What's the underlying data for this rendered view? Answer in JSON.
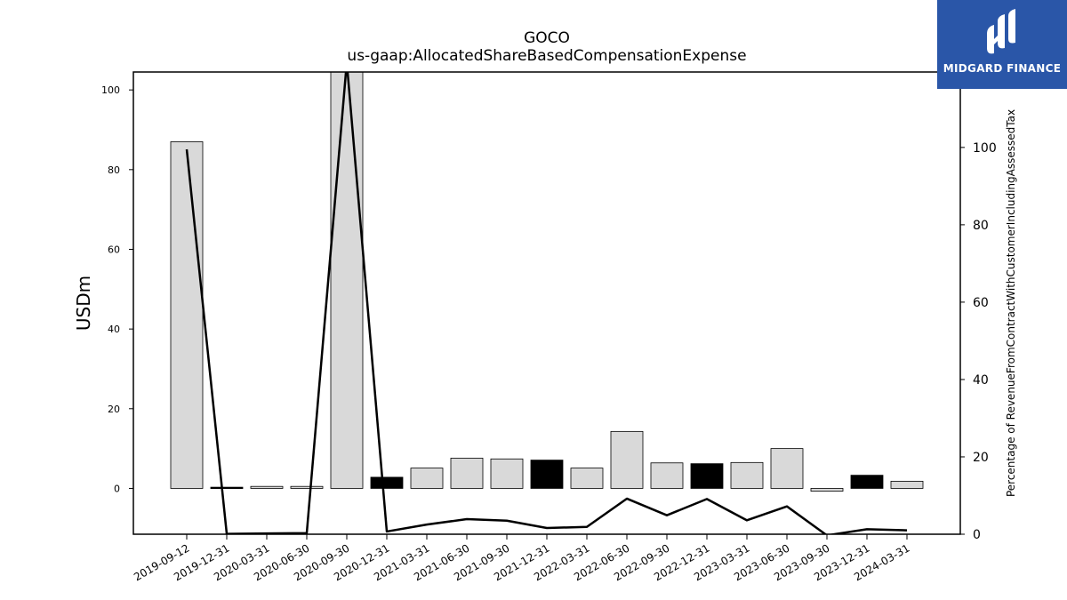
{
  "logo": {
    "text": "MIDGARD FINANCE",
    "bg_color": "#2a56a8",
    "icon": "midgard-logo-icon"
  },
  "chart_data": {
    "type": "bar",
    "title": "GOCO",
    "subtitle": "us-gaap:AllocatedShareBasedCompensationExpense",
    "ylabel": "USDm",
    "y2label": "Percentage of RevenueFromContractWithCustomerIncludingAssessedTax",
    "ylim": [
      -11.5,
      104.5
    ],
    "y2lim": [
      0,
      119.5
    ],
    "yticks": [
      0,
      20,
      40,
      60,
      80,
      100
    ],
    "y2ticks": [
      0,
      20,
      40,
      60,
      80,
      100
    ],
    "grid": false,
    "categories": [
      "2019-09-12",
      "2019-12-31",
      "2020-03-31",
      "2020-06-30",
      "2020-09-30",
      "2020-12-31",
      "2021-03-31",
      "2021-06-30",
      "2021-09-30",
      "2021-12-31",
      "2022-03-31",
      "2022-06-30",
      "2022-09-30",
      "2022-12-31",
      "2023-03-31",
      "2023-06-30",
      "2023-09-30",
      "2023-12-31",
      "2024-03-31"
    ],
    "series": [
      {
        "type": "bar",
        "axis": "left",
        "values": [
          87.0,
          0.3,
          0.5,
          0.5,
          105.0,
          2.8,
          5.1,
          7.6,
          7.4,
          7.1,
          5.1,
          14.3,
          6.4,
          6.2,
          6.5,
          10.0,
          -0.7,
          3.3,
          1.8
        ],
        "colors": [
          "#d9d9d9",
          "#000000",
          "#d9d9d9",
          "#d9d9d9",
          "#d9d9d9",
          "#000000",
          "#d9d9d9",
          "#d9d9d9",
          "#d9d9d9",
          "#000000",
          "#d9d9d9",
          "#d9d9d9",
          "#d9d9d9",
          "#000000",
          "#d9d9d9",
          "#d9d9d9",
          "#d9d9d9",
          "#000000",
          "#d9d9d9"
        ]
      },
      {
        "type": "line",
        "axis": "right",
        "color": "#000000",
        "values": [
          99.5,
          0.1,
          0.2,
          0.3,
          122.0,
          0.7,
          2.5,
          3.9,
          3.5,
          1.6,
          1.9,
          9.2,
          4.9,
          9.1,
          3.6,
          7.2,
          -0.3,
          1.3,
          1.0
        ]
      }
    ]
  }
}
